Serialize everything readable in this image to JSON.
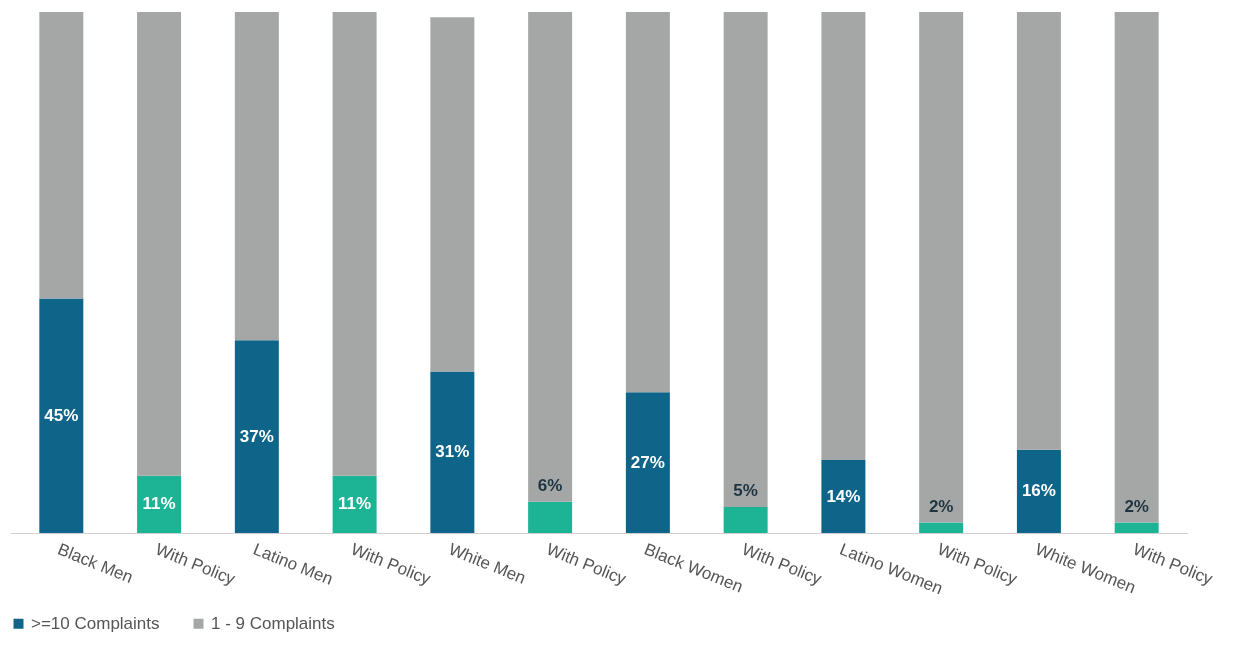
{
  "chart_data": {
    "type": "bar",
    "stacked": true,
    "categories": [
      "Black Men",
      "With Policy",
      "Latino Men",
      "With Policy",
      "White Men",
      "With Policy",
      "Black Women",
      "With Policy",
      "Latino Women",
      "With Policy",
      "White Women",
      "With Policy"
    ],
    "ylim": [
      0,
      100
    ],
    "tick_labels": "x",
    "legend": "bottom",
    "grid": false,
    "series": [
      {
        "name": ">=10 Complaints",
        "color": "#0e6589",
        "colors": [
          "#0e6589",
          "#1db495",
          "#0e6589",
          "#1db495",
          "#0e6589",
          "#1db495",
          "#0e6589",
          "#1db495",
          "#0e6589",
          "#1db495",
          "#0e6589",
          "#1db495"
        ],
        "values": [
          45,
          11,
          37,
          11,
          31,
          6,
          27,
          5,
          14,
          2,
          16,
          2
        ],
        "value_labels": [
          "45%",
          "11%",
          "37%",
          "11%",
          "31%",
          "6%",
          "27%",
          "5%",
          "14%",
          "2%",
          "16%",
          "2%"
        ]
      },
      {
        "name": "1 - 9 Complaints",
        "color": "#a5a7a7",
        "values": [
          55,
          89,
          63,
          89,
          68,
          94,
          73,
          95,
          86,
          98,
          84,
          98
        ]
      }
    ]
  }
}
